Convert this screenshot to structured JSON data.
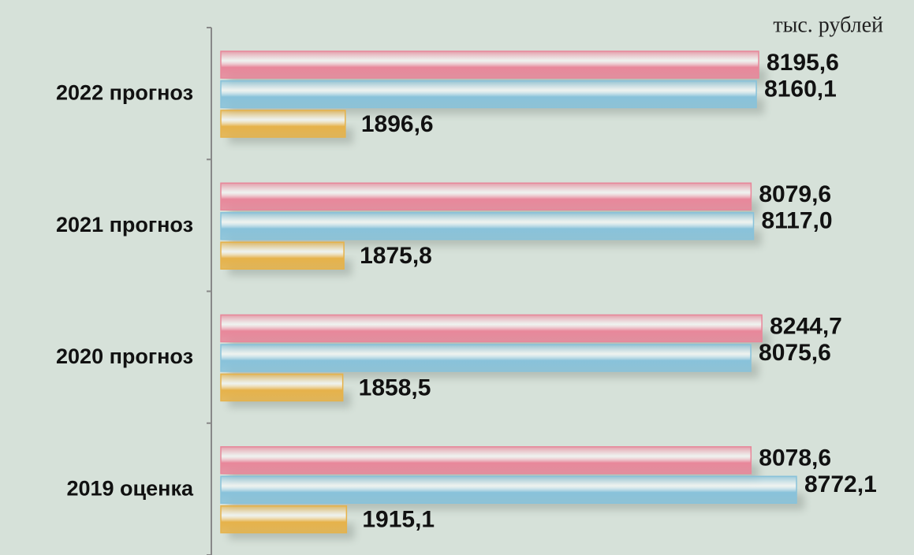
{
  "chart_data": {
    "type": "hbar",
    "unit_label": "тыс. рублей",
    "categories": [
      "2022 прогноз",
      "2021 прогноз",
      "2020 прогноз",
      "2019 оценка"
    ],
    "series": [
      {
        "color": "#e8879a",
        "values": [
          8195.6,
          8079.6,
          8244.7,
          8078.6
        ],
        "value_labels": [
          "8195,6",
          "8079,6",
          "8244,7",
          "8078,6"
        ]
      },
      {
        "color": "#88c2da",
        "values": [
          8160.1,
          8117.0,
          8075.6,
          8772.1
        ],
        "value_labels": [
          "8160,1",
          "8117,0",
          "8075,6",
          "8772,1"
        ]
      },
      {
        "color": "#e6b24a",
        "values": [
          1896.6,
          1875.8,
          1858.5,
          1915.1
        ],
        "value_labels": [
          "1896,6",
          "1875,8",
          "1858,5",
          "1915,1"
        ]
      }
    ]
  }
}
